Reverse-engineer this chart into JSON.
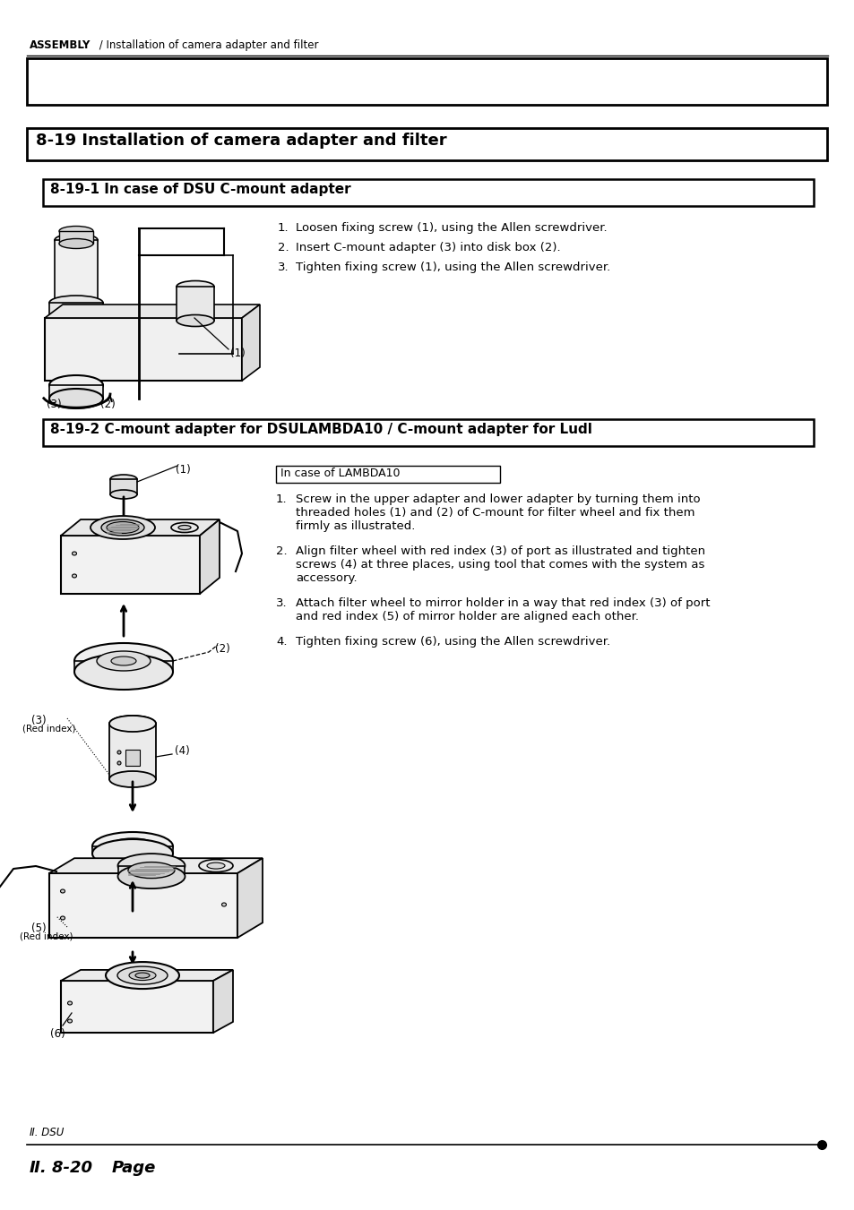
{
  "page_width": 9.54,
  "page_height": 13.51,
  "bg_color": "#ffffff",
  "header_text_bold": "ASSEMBLY",
  "header_text_normal": " / Installation of camera adapter and filter",
  "section_title": "8-19 Installation of camera adapter and filter",
  "subsection1_title": "8-19-1 In case of DSU C-mount adapter",
  "subsection2_title": "8-19-2 C-mount adapter for DSULAMBDA10 / C-mount adapter for Ludl",
  "instructions_1": [
    "Loosen fixing screw (1), using the Allen screwdriver.",
    "Insert C-mount adapter (3) into disk box (2).",
    "Tighten fixing screw (1), using the Allen screwdriver."
  ],
  "lambda10_label": "In case of LAMBDA10",
  "instructions_2_1": [
    "Screw in the upper adapter and lower adapter by turning them into",
    "threaded holes (1) and (2) of C-mount for filter wheel and fix them",
    "firmly as illustrated."
  ],
  "instructions_2_2": [
    "Align filter wheel with red index (3) of port as illustrated and tighten",
    "screws (4) at three places, using tool that comes with the system as",
    "accessory."
  ],
  "instructions_2_3": [
    "Attach filter wheel to mirror holder in a way that red index (3) of port",
    "and red index (5) of mirror holder are aligned each other."
  ],
  "instructions_2_4": [
    "Tighten fixing screw (6), using the Allen screwdriver."
  ],
  "footer_italic": "Ⅱ. DSU",
  "footer_bold": "Ⅱ. 8-20",
  "footer_page": "Page"
}
